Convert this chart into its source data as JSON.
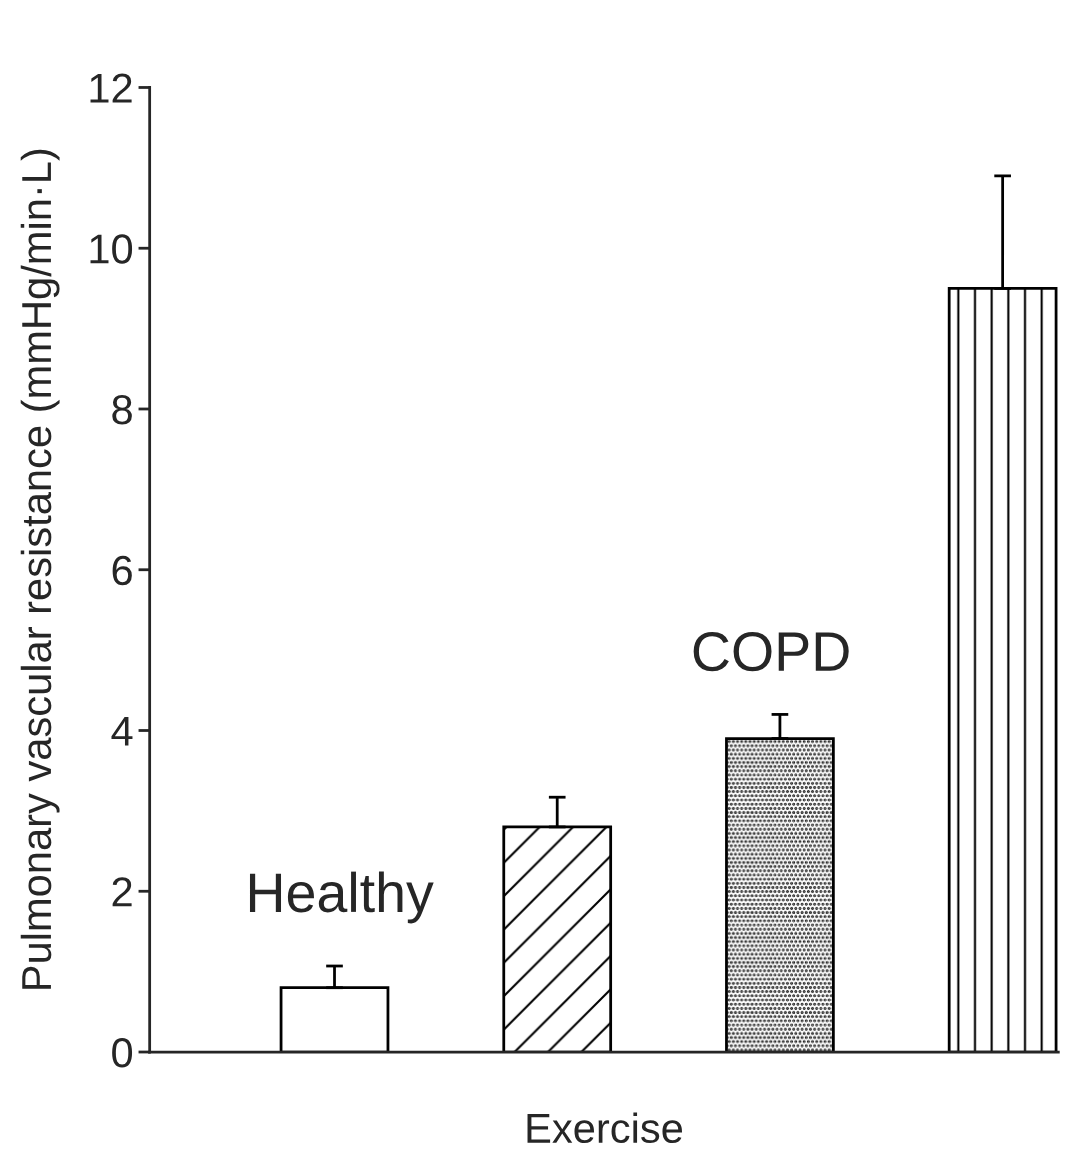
{
  "chart_data": {
    "type": "bar",
    "xlabel": "Exercise",
    "ylabel": "Pulmonary vascular resistance (mmHg/min·L)",
    "categories": [
      null,
      null,
      null,
      null
    ],
    "values": [
      0.8,
      2.8,
      3.9,
      9.5
    ],
    "errors": [
      [
        0.8,
        1.07
      ],
      [
        2.8,
        3.17
      ],
      [
        3.9,
        4.2
      ],
      [
        9.5,
        10.9
      ]
    ],
    "colors": [
      "#ffffff",
      "#ffffff",
      "#ffffff",
      "#ffffff"
    ],
    "ylim": [
      0,
      12
    ],
    "yticks": [
      0,
      2,
      4,
      6,
      8,
      10,
      12
    ],
    "grid": false,
    "annotations": [
      "Healthy",
      "COPD"
    ]
  }
}
